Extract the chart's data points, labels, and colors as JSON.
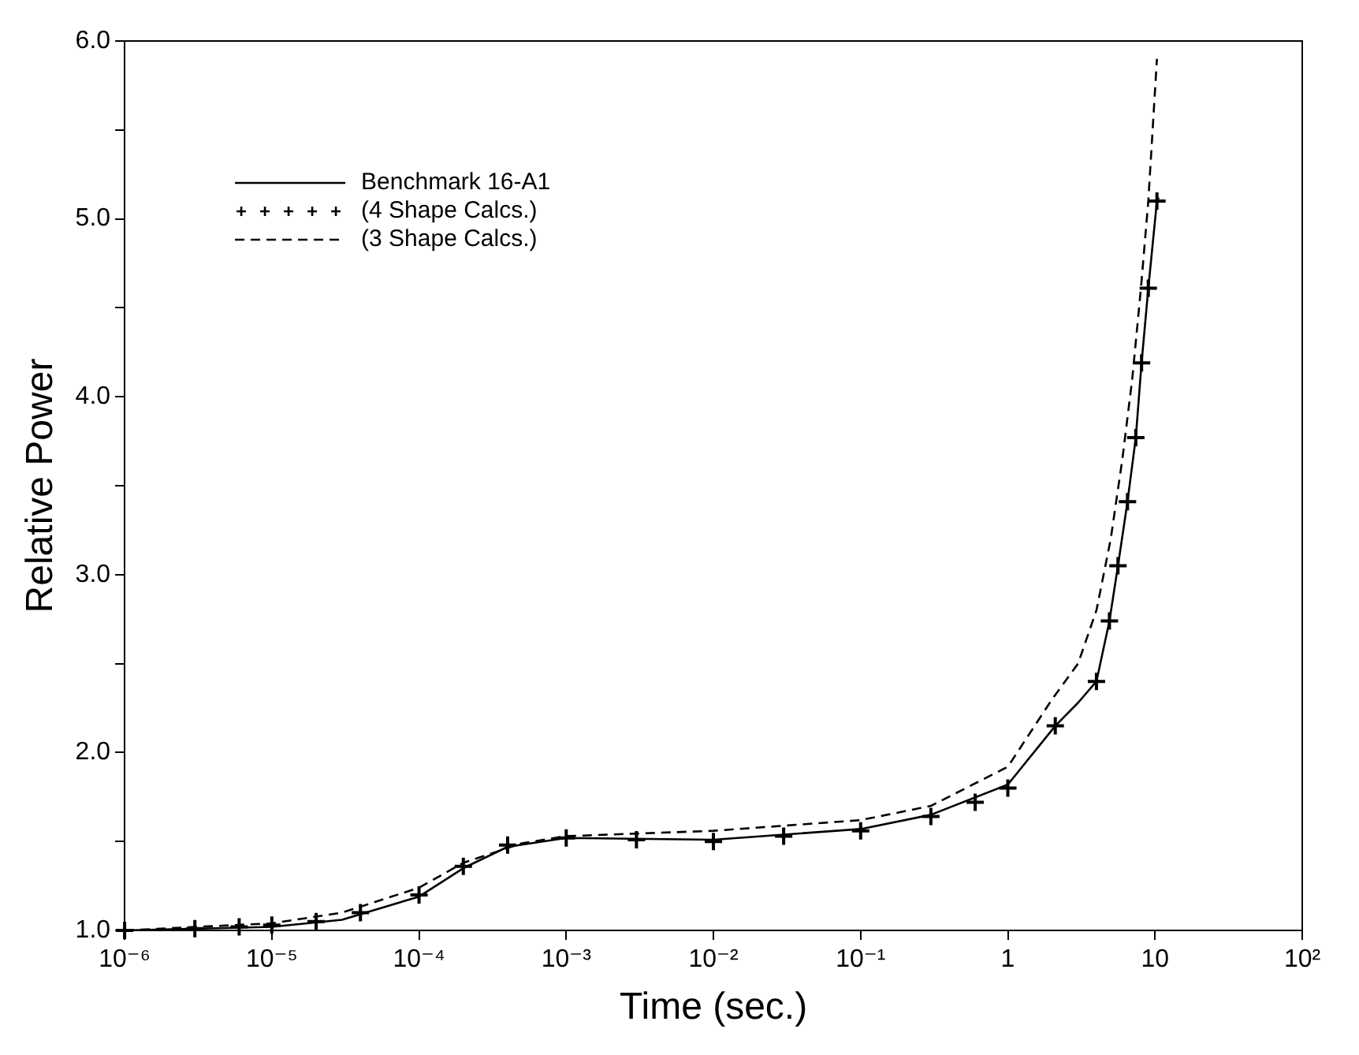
{
  "chart_data": {
    "type": "line",
    "xlabel": "Time (sec.)",
    "ylabel": "Relative Power",
    "log": "x",
    "grid": false,
    "legend": "top left",
    "xlim": [
      1e-06,
      100
    ],
    "xticks": [
      {
        "value": 1e-06,
        "label": "10⁻⁶"
      },
      {
        "value": 1e-05,
        "label": "10⁻⁵"
      },
      {
        "value": 0.0001,
        "label": "10⁻⁴"
      },
      {
        "value": 0.001,
        "label": "10⁻³"
      },
      {
        "value": 0.01,
        "label": "10⁻²"
      },
      {
        "value": 0.1,
        "label": "10⁻¹"
      },
      1,
      10,
      {
        "value": 100,
        "label": "10²"
      }
    ],
    "ylim": [
      1,
      6
    ],
    "yticks": [
      {
        "value": 1,
        "label": "1.0"
      },
      {
        "value": 1.5,
        "label": null
      },
      {
        "value": 2,
        "label": "2.0"
      },
      {
        "value": 2.5,
        "label": null
      },
      {
        "value": 3,
        "label": "3.0"
      },
      {
        "value": 3.5,
        "label": null
      },
      {
        "value": 4,
        "label": "4.0"
      },
      {
        "value": 4.5,
        "label": null
      },
      {
        "value": 5,
        "label": "5.0"
      },
      {
        "value": 5.5,
        "label": null
      },
      {
        "value": 6,
        "label": "6.0"
      }
    ],
    "series": [
      {
        "name": "Benchmark 16-A1",
        "color": "#000000",
        "line_style": "solid",
        "marker": "none",
        "x": [
          1e-06,
          1e-05,
          3e-05,
          0.0001,
          0.0002,
          0.0004,
          0.001,
          0.01,
          0.1,
          0.3,
          1,
          2.1,
          3,
          4,
          4.9,
          5.6,
          6.5,
          7.4,
          8.1,
          9,
          10.3,
          10.6
        ],
        "values": [
          1.0,
          1.02,
          1.06,
          1.19,
          1.35,
          1.47,
          1.52,
          1.51,
          1.57,
          1.65,
          1.82,
          2.15,
          2.28,
          2.4,
          2.74,
          3.05,
          3.41,
          3.77,
          4.19,
          4.61,
          5.1,
          5.12
        ]
      },
      {
        "name": "(4 Shape Calcs.)",
        "color": "#000000",
        "type": "scatter",
        "marker": "cross",
        "x": [
          1e-06,
          3e-06,
          6e-06,
          1e-05,
          2e-05,
          4e-05,
          0.0001,
          0.0002,
          0.0004,
          0.001,
          0.003,
          0.01,
          0.03,
          0.1,
          0.3,
          0.6,
          1,
          2.1,
          4.0,
          4.9,
          5.6,
          6.5,
          7.4,
          8.1,
          9.0,
          10.3
        ],
        "values": [
          1.0,
          1.01,
          1.02,
          1.03,
          1.05,
          1.1,
          1.2,
          1.36,
          1.48,
          1.52,
          1.51,
          1.5,
          1.53,
          1.56,
          1.64,
          1.72,
          1.8,
          2.15,
          2.4,
          2.74,
          3.05,
          3.41,
          3.77,
          4.19,
          4.61,
          5.1
        ]
      },
      {
        "name": "(3 Shape Calcs.)",
        "color": "#000000",
        "line_style": "dashed",
        "marker": "none",
        "x": [
          1e-06,
          1e-05,
          3e-05,
          0.0001,
          0.0002,
          0.0005,
          0.001,
          0.01,
          0.1,
          0.3,
          1,
          2,
          3,
          4,
          5,
          6,
          7,
          8,
          9,
          10.3
        ],
        "values": [
          1.0,
          1.04,
          1.1,
          1.24,
          1.38,
          1.49,
          1.53,
          1.56,
          1.62,
          1.7,
          1.92,
          2.3,
          2.5,
          2.8,
          3.2,
          3.65,
          4.1,
          4.6,
          5.1,
          5.9
        ]
      }
    ]
  }
}
